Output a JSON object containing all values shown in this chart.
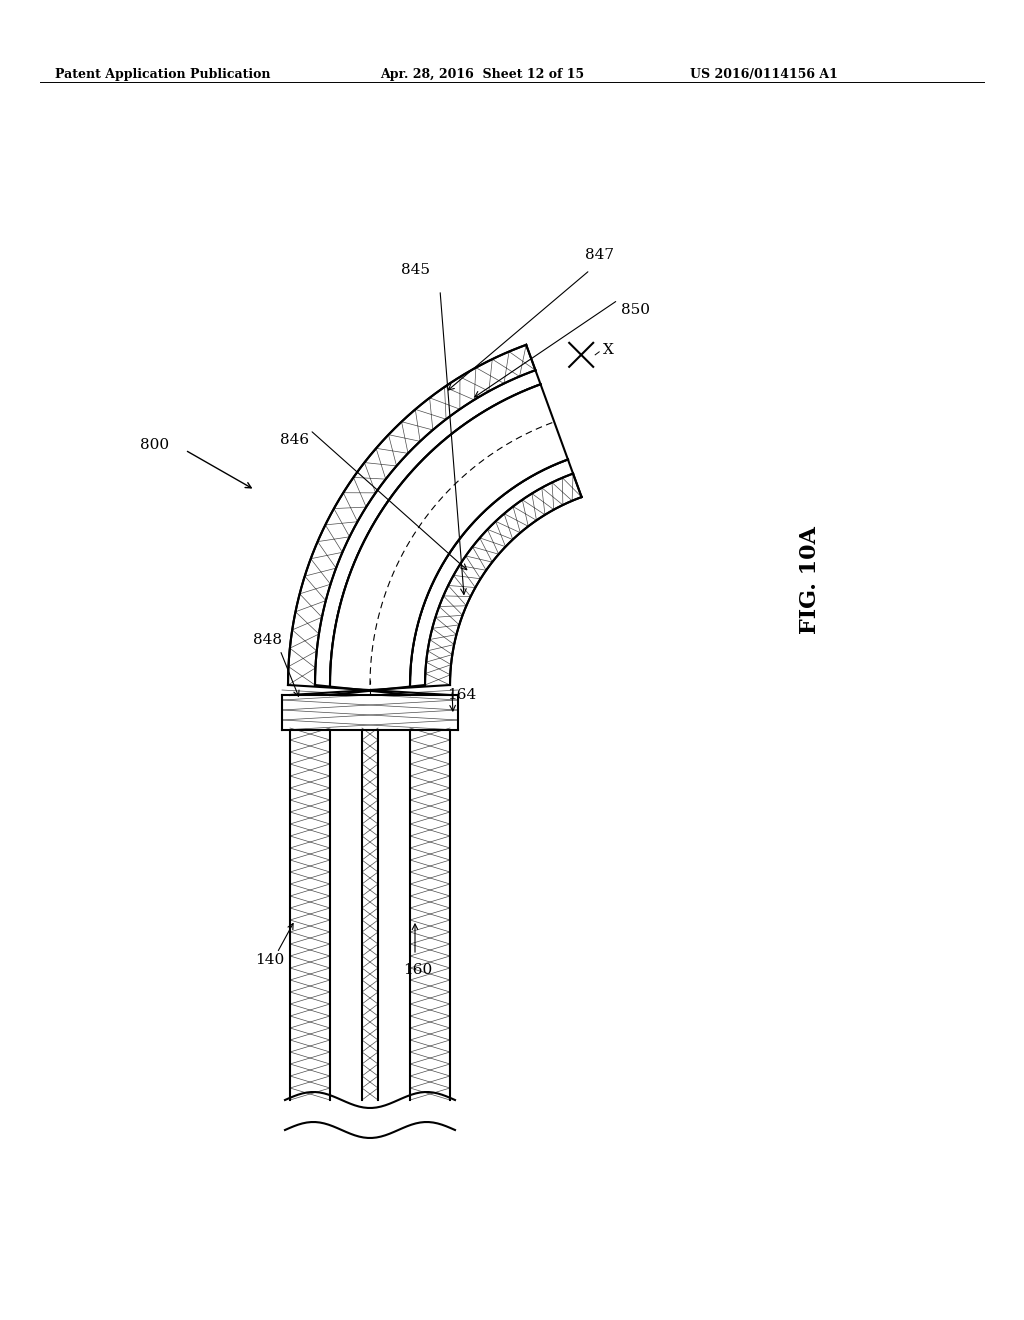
{
  "background_color": "#ffffff",
  "header_left": "Patent Application Publication",
  "header_mid": "Apr. 28, 2016  Sheet 12 of 15",
  "header_right": "US 2016/0114156 A1",
  "fig_label": "FIG. 10A",
  "ref_800": "800",
  "ref_140": "140",
  "ref_160": "160",
  "ref_164": "164",
  "ref_845": "845",
  "ref_846": "846",
  "ref_847": "847",
  "ref_848": "848",
  "ref_850": "850",
  "line_color": "#000000",
  "hatch_color": "#555555",
  "lw_main": 1.5,
  "lw_thin": 0.8
}
